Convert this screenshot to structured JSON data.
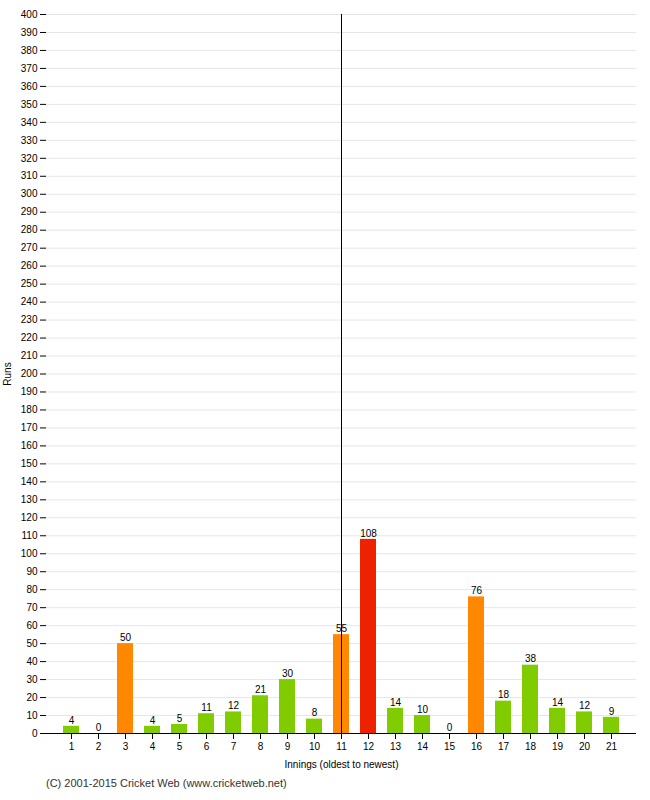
{
  "chart_data": {
    "type": "bar",
    "xlabel": "Innings (oldest to newest)",
    "ylabel": "Runs",
    "categories": [
      1,
      2,
      3,
      4,
      5,
      6,
      7,
      8,
      9,
      10,
      11,
      12,
      13,
      14,
      15,
      16,
      17,
      18,
      19,
      20,
      21
    ],
    "values": [
      4,
      0,
      50,
      4,
      5,
      11,
      12,
      21,
      30,
      8,
      55,
      108,
      14,
      10,
      0,
      76,
      18,
      38,
      14,
      12,
      9
    ],
    "colors": [
      "#80cc00",
      "#80cc00",
      "#ff8800",
      "#80cc00",
      "#80cc00",
      "#80cc00",
      "#80cc00",
      "#80cc00",
      "#80cc00",
      "#80cc00",
      "#ff8800",
      "#ee2200",
      "#80cc00",
      "#80cc00",
      "#80cc00",
      "#ff8800",
      "#80cc00",
      "#80cc00",
      "#80cc00",
      "#80cc00",
      "#80cc00"
    ],
    "ylim": [
      0,
      400
    ],
    "yticks": [
      0,
      10,
      20,
      30,
      40,
      50,
      60,
      70,
      80,
      90,
      100,
      110,
      120,
      130,
      140,
      150,
      160,
      170,
      180,
      190,
      200,
      210,
      220,
      230,
      240,
      250,
      260,
      270,
      280,
      290,
      300,
      310,
      320,
      330,
      340,
      350,
      360,
      370,
      380,
      390,
      400
    ],
    "grid": true,
    "data_labels": true,
    "footer": "(C) 2001-2015 Cricket Web (www.cricketweb.net)"
  }
}
